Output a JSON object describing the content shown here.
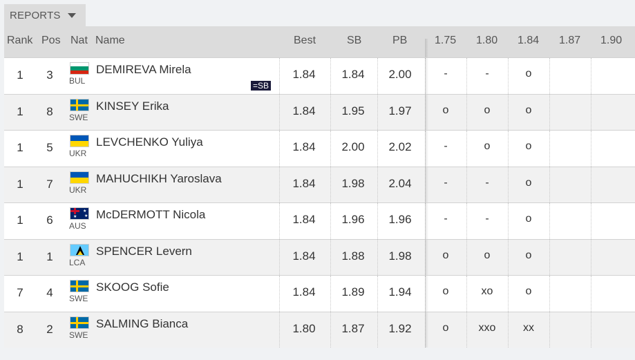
{
  "reports_label": "REPORTS",
  "headers": {
    "rank": "Rank",
    "pos": "Pos",
    "nat": "Nat",
    "name": "Name",
    "best": "Best",
    "sb": "SB",
    "pb": "PB",
    "heights": [
      "1.75",
      "1.80",
      "1.84",
      "1.87",
      "1.90"
    ]
  },
  "rows": [
    {
      "rank": "1",
      "pos": "3",
      "nat": "BUL",
      "name": "DEMIREVA Mirela",
      "best": "1.84",
      "sb": "1.84",
      "pb": "2.00",
      "badge": "=SB",
      "attempts": [
        "-",
        "-",
        "o",
        "",
        ""
      ]
    },
    {
      "rank": "1",
      "pos": "8",
      "nat": "SWE",
      "name": "KINSEY Erika",
      "best": "1.84",
      "sb": "1.95",
      "pb": "1.97",
      "badge": "",
      "attempts": [
        "o",
        "o",
        "o",
        "",
        ""
      ]
    },
    {
      "rank": "1",
      "pos": "5",
      "nat": "UKR",
      "name": "LEVCHENKO Yuliya",
      "best": "1.84",
      "sb": "2.00",
      "pb": "2.02",
      "badge": "",
      "attempts": [
        "-",
        "o",
        "o",
        "",
        ""
      ]
    },
    {
      "rank": "1",
      "pos": "7",
      "nat": "UKR",
      "name": "MAHUCHIKH Yaroslava",
      "best": "1.84",
      "sb": "1.98",
      "pb": "2.04",
      "badge": "",
      "attempts": [
        "-",
        "-",
        "o",
        "",
        ""
      ]
    },
    {
      "rank": "1",
      "pos": "6",
      "nat": "AUS",
      "name": "McDERMOTT Nicola",
      "best": "1.84",
      "sb": "1.96",
      "pb": "1.96",
      "badge": "",
      "attempts": [
        "-",
        "-",
        "o",
        "",
        ""
      ]
    },
    {
      "rank": "1",
      "pos": "1",
      "nat": "LCA",
      "name": "SPENCER Levern",
      "best": "1.84",
      "sb": "1.88",
      "pb": "1.98",
      "badge": "",
      "attempts": [
        "o",
        "o",
        "o",
        "",
        ""
      ]
    },
    {
      "rank": "7",
      "pos": "4",
      "nat": "SWE",
      "name": "SKOOG Sofie",
      "best": "1.84",
      "sb": "1.89",
      "pb": "1.94",
      "badge": "",
      "attempts": [
        "o",
        "xo",
        "o",
        "",
        ""
      ]
    },
    {
      "rank": "8",
      "pos": "2",
      "nat": "SWE",
      "name": "SALMING Bianca",
      "best": "1.80",
      "sb": "1.87",
      "pb": "1.92",
      "badge": "",
      "attempts": [
        "o",
        "xxo",
        "xx",
        "",
        ""
      ]
    }
  ],
  "flags": {
    "BUL": "flag-bulgaria-icon",
    "SWE": "flag-sweden-icon",
    "UKR": "flag-ukraine-icon",
    "AUS": "flag-australia-icon",
    "LCA": "flag-saint-lucia-icon"
  },
  "colors": {
    "header_bg": "#dcdcdc",
    "badge_bg": "#1a1a3a",
    "row_alt": "#f1f1f1"
  }
}
